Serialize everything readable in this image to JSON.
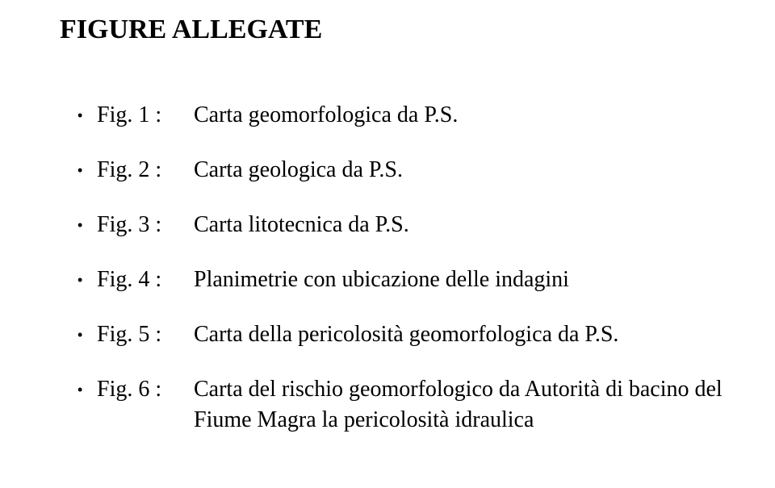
{
  "title": "FIGURE ALLEGATE",
  "bullet_glyph": "•",
  "items": [
    {
      "label": "Fig. 1 :",
      "desc": "Carta geomorfologica da P.S."
    },
    {
      "label": "Fig. 2 :",
      "desc": "Carta geologica da P.S."
    },
    {
      "label": "Fig. 3 :",
      "desc": "Carta litotecnica da P.S."
    },
    {
      "label": "Fig. 4 :",
      "desc": "Planimetrie con ubicazione delle indagini"
    },
    {
      "label": "Fig. 5 :",
      "desc": "Carta della pericolosità geomorfologica da P.S."
    },
    {
      "label": "Fig. 6 :",
      "desc": "Carta del rischio geomorfologico da Autorità di bacino del Fiume Magra la pericolosità idraulica"
    }
  ]
}
